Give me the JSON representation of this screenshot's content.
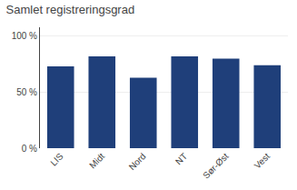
{
  "chart_data": {
    "type": "bar",
    "title": "Samlet registreringsgrad",
    "categories": [
      "LIS",
      "Midt",
      "Nord",
      "NT",
      "Sør-Øst",
      "Vest"
    ],
    "values": [
      73,
      82,
      63,
      82,
      80,
      74
    ],
    "color": "#1F3F7A",
    "ylim": [
      0,
      108
    ],
    "yticks": [
      {
        "value": 0,
        "label": "0 %"
      },
      {
        "value": 50,
        "label": "50 %"
      },
      {
        "value": 100,
        "label": "100 %"
      }
    ],
    "grid": true
  }
}
